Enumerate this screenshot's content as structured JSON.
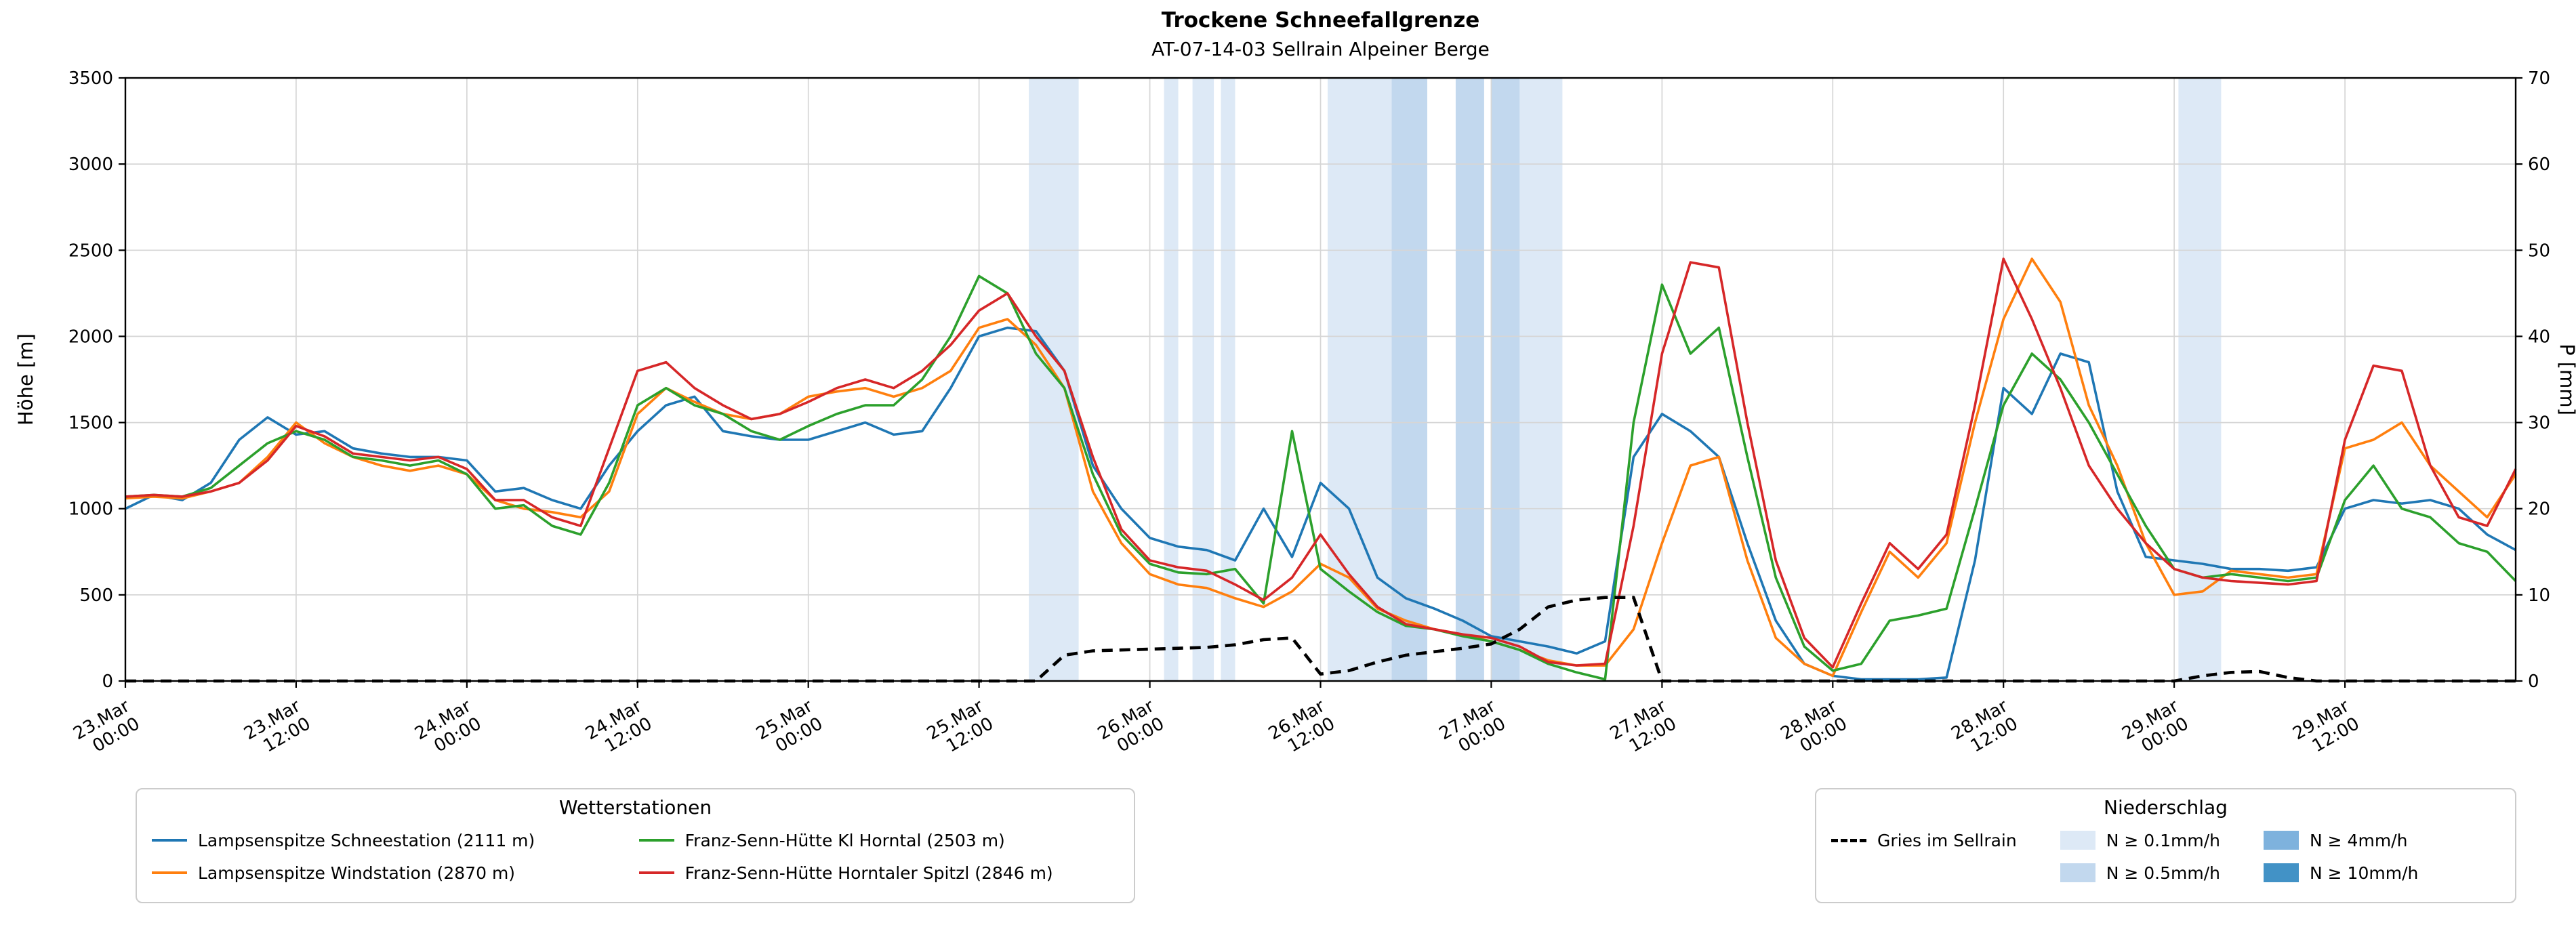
{
  "title": "Trockene Schneefallgrenze",
  "subtitle": "AT-07-14-03 Sellrain Alpeiner Berge",
  "chart_data": {
    "type": "line",
    "x_unit": "hours since 23 Mar 00:00",
    "x_step_hours": 2,
    "x_max_hours": 168,
    "grid": true,
    "left_axis": {
      "label": "Höhe [m]",
      "min": 0,
      "max": 3500,
      "tick_step": 500
    },
    "right_axis": {
      "label": "P [mm]",
      "min": 0,
      "max": 70,
      "tick_step": 10
    },
    "x_ticks": [
      {
        "hour": 0,
        "date": "23.Mar",
        "time": "00:00"
      },
      {
        "hour": 12,
        "date": "23.Mar",
        "time": "12:00"
      },
      {
        "hour": 24,
        "date": "24.Mar",
        "time": "00:00"
      },
      {
        "hour": 36,
        "date": "24.Mar",
        "time": "12:00"
      },
      {
        "hour": 48,
        "date": "25.Mar",
        "time": "00:00"
      },
      {
        "hour": 60,
        "date": "25.Mar",
        "time": "12:00"
      },
      {
        "hour": 72,
        "date": "26.Mar",
        "time": "00:00"
      },
      {
        "hour": 84,
        "date": "26.Mar",
        "time": "12:00"
      },
      {
        "hour": 96,
        "date": "27.Mar",
        "time": "00:00"
      },
      {
        "hour": 108,
        "date": "27.Mar",
        "time": "12:00"
      },
      {
        "hour": 120,
        "date": "28.Mar",
        "time": "00:00"
      },
      {
        "hour": 132,
        "date": "28.Mar",
        "time": "12:00"
      },
      {
        "hour": 144,
        "date": "29.Mar",
        "time": "00:00"
      },
      {
        "hour": 156,
        "date": "29.Mar",
        "time": "12:00"
      }
    ],
    "series": [
      {
        "name": "Lampsenspitze Schneestation (2111 m)",
        "color": "#1f77b4",
        "axis": "left",
        "dashed": false,
        "values": [
          1000,
          1080,
          1050,
          1150,
          1400,
          1530,
          1430,
          1450,
          1350,
          1320,
          1300,
          1300,
          1280,
          1100,
          1120,
          1050,
          1000,
          1250,
          1450,
          1600,
          1650,
          1450,
          1420,
          1400,
          1400,
          1450,
          1500,
          1430,
          1450,
          1700,
          2000,
          2050,
          2030,
          1800,
          1250,
          1000,
          830,
          780,
          760,
          700,
          1000,
          720,
          1150,
          1000,
          600,
          480,
          420,
          350,
          260,
          230,
          200,
          160,
          230,
          1300,
          1550,
          1450,
          1300,
          800,
          350,
          100,
          30,
          10,
          10,
          10,
          20,
          700,
          1700,
          1550,
          1900,
          1850,
          1100,
          720,
          700,
          680,
          650,
          650,
          640,
          660,
          1000,
          1050,
          1030,
          1050,
          1000,
          850,
          760
        ]
      },
      {
        "name": "Lampsenspitze Windstation (2870 m)",
        "color": "#ff7f0e",
        "axis": "left",
        "dashed": false,
        "values": [
          1060,
          1070,
          1060,
          1100,
          1150,
          1300,
          1500,
          1380,
          1300,
          1250,
          1220,
          1250,
          1200,
          1050,
          1000,
          980,
          950,
          1100,
          1550,
          1700,
          1620,
          1550,
          1520,
          1550,
          1650,
          1680,
          1700,
          1650,
          1700,
          1800,
          2050,
          2100,
          1950,
          1700,
          1100,
          800,
          620,
          560,
          540,
          480,
          430,
          520,
          680,
          600,
          420,
          350,
          300,
          270,
          230,
          180,
          120,
          90,
          90,
          300,
          800,
          1250,
          1300,
          700,
          250,
          100,
          30,
          400,
          750,
          600,
          800,
          1500,
          2100,
          2450,
          2200,
          1600,
          1250,
          800,
          500,
          520,
          640,
          620,
          600,
          620,
          1350,
          1400,
          1500,
          1250,
          1100,
          950,
          1200
        ]
      },
      {
        "name": "Franz-Senn-Hütte Kl Horntal (2503 m)",
        "color": "#2ca02c",
        "axis": "left",
        "dashed": false,
        "values": [
          1070,
          1080,
          1070,
          1120,
          1250,
          1380,
          1450,
          1400,
          1300,
          1280,
          1250,
          1280,
          1200,
          1000,
          1020,
          900,
          850,
          1150,
          1600,
          1700,
          1600,
          1550,
          1450,
          1400,
          1480,
          1550,
          1600,
          1600,
          1750,
          2000,
          2350,
          2250,
          1900,
          1700,
          1200,
          850,
          680,
          630,
          620,
          650,
          450,
          1450,
          650,
          520,
          400,
          320,
          300,
          260,
          230,
          180,
          100,
          50,
          10,
          1500,
          2300,
          1900,
          2050,
          1300,
          600,
          200,
          60,
          100,
          350,
          380,
          420,
          1000,
          1600,
          1900,
          1750,
          1500,
          1200,
          900,
          650,
          600,
          620,
          600,
          580,
          600,
          1050,
          1250,
          1000,
          950,
          800,
          750,
          580
        ]
      },
      {
        "name": "Franz-Senn-Hütte Horntaler Spitzl (2846 m)",
        "color": "#d62728",
        "axis": "left",
        "dashed": false,
        "values": [
          1070,
          1080,
          1070,
          1100,
          1150,
          1280,
          1480,
          1420,
          1320,
          1300,
          1280,
          1300,
          1230,
          1050,
          1050,
          950,
          900,
          1350,
          1800,
          1850,
          1700,
          1600,
          1520,
          1550,
          1620,
          1700,
          1750,
          1700,
          1800,
          1950,
          2150,
          2250,
          2000,
          1800,
          1300,
          880,
          700,
          660,
          640,
          560,
          470,
          600,
          850,
          620,
          430,
          330,
          300,
          270,
          250,
          200,
          110,
          90,
          100,
          900,
          1900,
          2430,
          2400,
          1500,
          700,
          250,
          80,
          450,
          800,
          650,
          850,
          1600,
          2450,
          2100,
          1700,
          1250,
          1000,
          800,
          650,
          600,
          580,
          570,
          560,
          580,
          1400,
          1830,
          1800,
          1250,
          950,
          900,
          1230
        ]
      },
      {
        "name": "Gries im Sellrain",
        "color": "#000000",
        "axis": "right",
        "dashed": true,
        "values": [
          0,
          0,
          0,
          0,
          0,
          0,
          0,
          0,
          0,
          0,
          0,
          0,
          0,
          0,
          0,
          0,
          0,
          0,
          0,
          0,
          0,
          0,
          0,
          0,
          0,
          0,
          0,
          0,
          0,
          0,
          0,
          0,
          0,
          3.0,
          3.5,
          3.6,
          3.7,
          3.8,
          3.9,
          4.2,
          4.8,
          5.0,
          0.8,
          1.2,
          2.2,
          3.0,
          3.4,
          3.8,
          4.3,
          6.0,
          8.6,
          9.4,
          9.7,
          9.7,
          0,
          0,
          0,
          0,
          0,
          0,
          0,
          0,
          0,
          0,
          0,
          0,
          0,
          0,
          0,
          0,
          0,
          0,
          0,
          0.6,
          1.0,
          1.1,
          0.4,
          0,
          0,
          0,
          0,
          0,
          0,
          0,
          0
        ]
      }
    ],
    "precip_bands": [
      {
        "start_hour": 63.5,
        "end_hour": 67.0,
        "level": 1
      },
      {
        "start_hour": 73.0,
        "end_hour": 74.0,
        "level": 1
      },
      {
        "start_hour": 75.0,
        "end_hour": 76.5,
        "level": 1
      },
      {
        "start_hour": 77.0,
        "end_hour": 78.0,
        "level": 1
      },
      {
        "start_hour": 84.5,
        "end_hour": 89.0,
        "level": 1
      },
      {
        "start_hour": 89.0,
        "end_hour": 91.5,
        "level": 2
      },
      {
        "start_hour": 93.5,
        "end_hour": 95.5,
        "level": 2
      },
      {
        "start_hour": 96.0,
        "end_hour": 98.0,
        "level": 2
      },
      {
        "start_hour": 98.0,
        "end_hour": 101.0,
        "level": 1
      },
      {
        "start_hour": 144.3,
        "end_hour": 147.3,
        "level": 1
      }
    ],
    "band_levels": {
      "1": "#dde9f6",
      "2": "#c2d8ee",
      "3": "#7eb2dd",
      "4": "#4292c6"
    }
  },
  "legend_stations": {
    "title": "Wetterstationen",
    "items": [
      {
        "label": "Lampsenspitze Schneestation (2111 m)",
        "color": "#1f77b4"
      },
      {
        "label": "Lampsenspitze Windstation (2870 m)",
        "color": "#ff7f0e"
      },
      {
        "label": "Franz-Senn-Hütte Kl Horntal (2503 m)",
        "color": "#2ca02c"
      },
      {
        "label": "Franz-Senn-Hütte Horntaler Spitzl (2846 m)",
        "color": "#d62728"
      }
    ]
  },
  "legend_precip": {
    "title": "Niederschlag",
    "line_item": {
      "label": "Gries im Sellrain"
    },
    "patches": [
      {
        "label": "N ≥ 0.1mm/h",
        "level": 1
      },
      {
        "label": "N ≥ 0.5mm/h",
        "level": 2
      },
      {
        "label": "N ≥ 4mm/h",
        "level": 3
      },
      {
        "label": "N ≥ 10mm/h",
        "level": 4
      }
    ]
  }
}
